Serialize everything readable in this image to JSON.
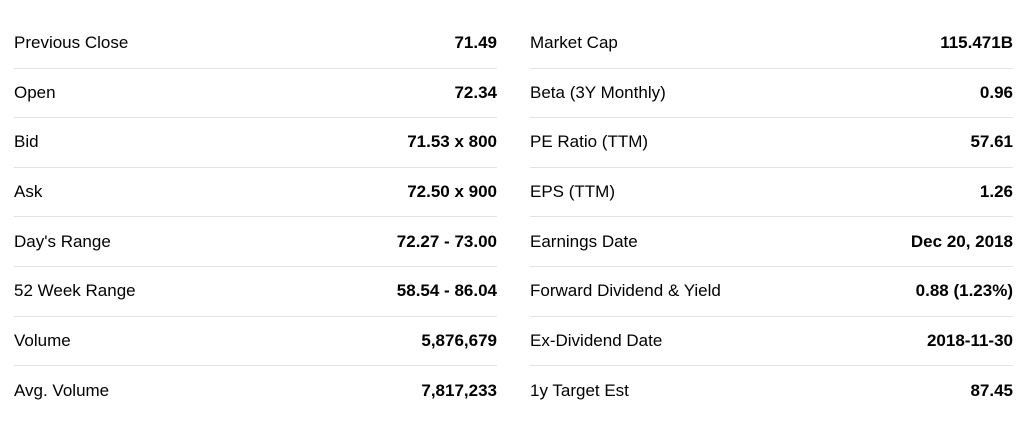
{
  "left": [
    {
      "label": "Previous Close",
      "value": "71.49"
    },
    {
      "label": "Open",
      "value": "72.34"
    },
    {
      "label": "Bid",
      "value": "71.53 x 800"
    },
    {
      "label": "Ask",
      "value": "72.50 x 900"
    },
    {
      "label": "Day's Range",
      "value": "72.27 - 73.00"
    },
    {
      "label": "52 Week Range",
      "value": "58.54 - 86.04"
    },
    {
      "label": "Volume",
      "value": "5,876,679"
    },
    {
      "label": "Avg. Volume",
      "value": "7,817,233"
    }
  ],
  "right": [
    {
      "label": "Market Cap",
      "value": "115.471B"
    },
    {
      "label": "Beta (3Y Monthly)",
      "value": "0.96"
    },
    {
      "label": "PE Ratio (TTM)",
      "value": "57.61"
    },
    {
      "label": "EPS (TTM)",
      "value": "1.26"
    },
    {
      "label": "Earnings Date",
      "value": "Dec 20, 2018"
    },
    {
      "label": "Forward Dividend & Yield",
      "value": "0.88 (1.23%)"
    },
    {
      "label": "Ex-Dividend Date",
      "value": "2018-11-30"
    },
    {
      "label": "1y Target Est",
      "value": "87.45"
    }
  ]
}
